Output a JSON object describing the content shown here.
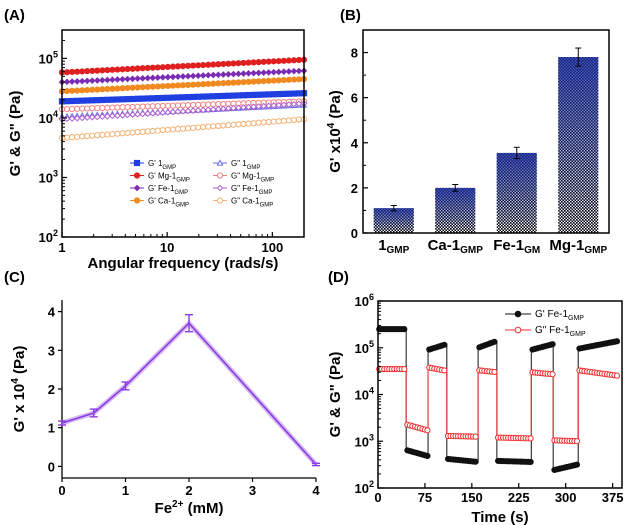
{
  "chart_data": [
    {
      "panel": "(A)",
      "type": "scatter",
      "xlabel": "Angular frequency (rads/s)",
      "ylabel": "G' & G\" (Pa)",
      "xscale": "log",
      "yscale": "log",
      "xlim": [
        1,
        200
      ],
      "ylim": [
        100,
        300000
      ],
      "x_ticks": [
        "1",
        "10",
        "100"
      ],
      "y_ticks": [
        "10^2",
        "10^3",
        "10^4",
        "10^5"
      ],
      "legend_position": "bottom-right",
      "series": [
        {
          "name": "G' 1",
          "sub": "GMP",
          "marker": "square",
          "filled": true,
          "color": "#1f3fe0",
          "start": 19000,
          "end": 26000
        },
        {
          "name": "G\" 1",
          "sub": "GMP",
          "marker": "triangle",
          "filled": false,
          "color": "#6b6fe0",
          "start": 10500,
          "end": 16500
        },
        {
          "name": "G' Mg-1",
          "sub": "GMP",
          "marker": "circle",
          "filled": true,
          "color": "#e02020",
          "start": 58000,
          "end": 95000
        },
        {
          "name": "G\" Mg-1",
          "sub": "GMP",
          "marker": "circle",
          "filled": false,
          "color": "#f08080",
          "start": 14000,
          "end": 19000
        },
        {
          "name": "G' Fe-1",
          "sub": "GMP",
          "marker": "diamond",
          "filled": true,
          "color": "#7b2cb4",
          "start": 40000,
          "end": 62000
        },
        {
          "name": "G\" Fe-1",
          "sub": "GMP",
          "marker": "diamond",
          "filled": false,
          "color": "#b060d0",
          "start": 9500,
          "end": 17500
        },
        {
          "name": "G' Ca-1",
          "sub": "GMP",
          "marker": "circle",
          "filled": true,
          "color": "#f08a20",
          "start": 28000,
          "end": 45000
        },
        {
          "name": "G\" Ca-1",
          "sub": "GMP",
          "marker": "circle",
          "filled": false,
          "color": "#f5b070",
          "start": 4600,
          "end": 9500
        }
      ]
    },
    {
      "panel": "(B)",
      "type": "bar",
      "ylabel": "G' x10^4 (Pa)",
      "ylim": [
        0,
        9
      ],
      "y_ticks": [
        "0",
        "2",
        "4",
        "6",
        "8"
      ],
      "categories": [
        {
          "main": "1",
          "sub": "GMP"
        },
        {
          "main": "Ca-1",
          "sub": "GMP"
        },
        {
          "main": "Fe-1",
          "sub": "GM"
        },
        {
          "main": "Mg-1",
          "sub": "GMP"
        }
      ],
      "values": [
        1.1,
        2.0,
        3.55,
        7.8
      ],
      "errors": [
        0.12,
        0.15,
        0.25,
        0.4
      ]
    },
    {
      "panel": "(C)",
      "type": "line",
      "xlabel": "Fe",
      "xlabel_sup": "2+",
      "xlabel_unit": "(mM)",
      "ylabel": "G' x 10^4 (Pa)",
      "xlim": [
        0,
        4
      ],
      "ylim": [
        -0.3,
        4.3
      ],
      "x_ticks": [
        "0",
        "1",
        "2",
        "3",
        "4"
      ],
      "y_ticks": [
        "0",
        "1",
        "2",
        "3",
        "4"
      ],
      "x": [
        0,
        0.5,
        1,
        2,
        4
      ],
      "y": [
        1.12,
        1.38,
        2.08,
        3.7,
        0.05
      ],
      "errors": [
        0.05,
        0.1,
        0.1,
        0.22,
        0.03
      ],
      "color": "#8a3ee0"
    },
    {
      "panel": "(D)",
      "type": "line",
      "xlabel": "Time (s)",
      "ylabel": "G' & G\" (Pa)",
      "yscale": "log",
      "xlim": [
        0,
        390
      ],
      "ylim": [
        100,
        1000000
      ],
      "x_ticks": [
        "0",
        "75",
        "150",
        "225",
        "300",
        "375"
      ],
      "y_ticks": [
        "10^2",
        "10^3",
        "10^4",
        "10^5",
        "10^6"
      ],
      "legend_position": "top-right",
      "series": [
        {
          "name": "G' Fe-1",
          "sub": "GMP",
          "color": "#111111",
          "filled": true,
          "segments": [
            {
              "t0": 0,
              "t1": 45,
              "a": 250000,
              "b": 250000
            },
            {
              "t0": 45,
              "t1": 80,
              "a": 650,
              "b": 480
            },
            {
              "t0": 80,
              "t1": 110,
              "a": 90000,
              "b": 120000
            },
            {
              "t0": 110,
              "t1": 160,
              "a": 420,
              "b": 360
            },
            {
              "t0": 160,
              "t1": 190,
              "a": 100000,
              "b": 140000
            },
            {
              "t0": 190,
              "t1": 245,
              "a": 380,
              "b": 360
            },
            {
              "t0": 245,
              "t1": 280,
              "a": 90000,
              "b": 120000
            },
            {
              "t0": 280,
              "t1": 320,
              "a": 240,
              "b": 320
            },
            {
              "t0": 320,
              "t1": 385,
              "a": 95000,
              "b": 140000
            }
          ]
        },
        {
          "name": "G\" Fe-1",
          "sub": "GMP",
          "color": "#ee3030",
          "filled": false,
          "segments": [
            {
              "t0": 0,
              "t1": 45,
              "a": 35000,
              "b": 35000
            },
            {
              "t0": 45,
              "t1": 80,
              "a": 2300,
              "b": 1700
            },
            {
              "t0": 80,
              "t1": 110,
              "a": 38000,
              "b": 32000
            },
            {
              "t0": 110,
              "t1": 160,
              "a": 1300,
              "b": 1250
            },
            {
              "t0": 160,
              "t1": 190,
              "a": 33000,
              "b": 30000
            },
            {
              "t0": 190,
              "t1": 245,
              "a": 1200,
              "b": 1150
            },
            {
              "t0": 245,
              "t1": 280,
              "a": 30000,
              "b": 27000
            },
            {
              "t0": 280,
              "t1": 320,
              "a": 1050,
              "b": 1000
            },
            {
              "t0": 320,
              "t1": 385,
              "a": 33000,
              "b": 25000
            }
          ]
        }
      ]
    }
  ]
}
